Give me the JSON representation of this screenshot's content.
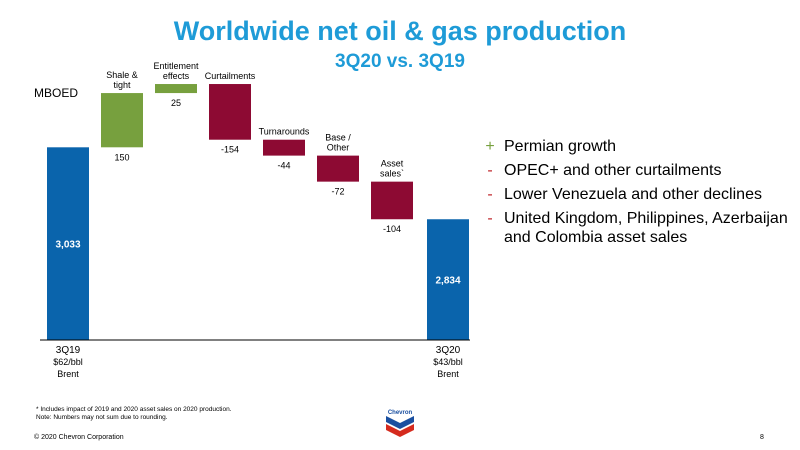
{
  "title": "Worldwide net oil & gas production",
  "subtitle": "3Q20 vs. 3Q19",
  "units": "MBOED",
  "chart_data": {
    "type": "bar",
    "subtype": "waterfall",
    "ylim": [
      2500,
      3150
    ],
    "grid": false,
    "legend": "none",
    "steps": [
      {
        "kind": "total",
        "label": "",
        "value": 3033,
        "value_label": "3,033",
        "color": "#0a64ac"
      },
      {
        "kind": "delta",
        "label": "Shale &\ntight",
        "value": 150,
        "value_label": "150",
        "color": "#77a03e"
      },
      {
        "kind": "delta",
        "label": "Entitlement\neffects",
        "value": 25,
        "value_label": "25",
        "color": "#77a03e"
      },
      {
        "kind": "delta",
        "label": "Curtailments",
        "value": -154,
        "value_label": "-154",
        "color": "#8d0a33"
      },
      {
        "kind": "delta",
        "label": "Turnarounds",
        "value": -44,
        "value_label": "-44",
        "color": "#8d0a33"
      },
      {
        "kind": "delta",
        "label": "Base /\nOther",
        "value": -72,
        "value_label": "-72",
        "color": "#8d0a33"
      },
      {
        "kind": "delta",
        "label": "Asset\nsales`",
        "value": -104,
        "value_label": "-104",
        "color": "#8d0a33"
      },
      {
        "kind": "total",
        "label": "",
        "value": 2834,
        "value_label": "2,834",
        "color": "#0a64ac"
      }
    ],
    "axis_labels": [
      {
        "lines": [
          "3Q19",
          "$62/bbl",
          "Brent"
        ]
      },
      {
        "lines": [
          "3Q20",
          "$43/bbl",
          "Brent"
        ]
      }
    ]
  },
  "bullets": [
    {
      "mark": "+",
      "color": "#77a03e",
      "text": "Permian growth"
    },
    {
      "mark": "-",
      "color": "#c0282d",
      "text": "OPEC+ and other curtailments"
    },
    {
      "mark": "-",
      "color": "#c0282d",
      "text": "Lower Venezuela and other declines"
    },
    {
      "mark": "-",
      "color": "#c0282d",
      "text": "United Kingdom, Philippines, Azerbaijan and Colombia asset sales"
    }
  ],
  "footnote1": "* Includes impact of 2019 and 2020 asset sales on 2020 production.",
  "footnote2": "Note: Numbers may not sum due to rounding.",
  "logo_text": "Chevron",
  "copyright": "© 2020 Chevron Corporation",
  "page_number": "8"
}
